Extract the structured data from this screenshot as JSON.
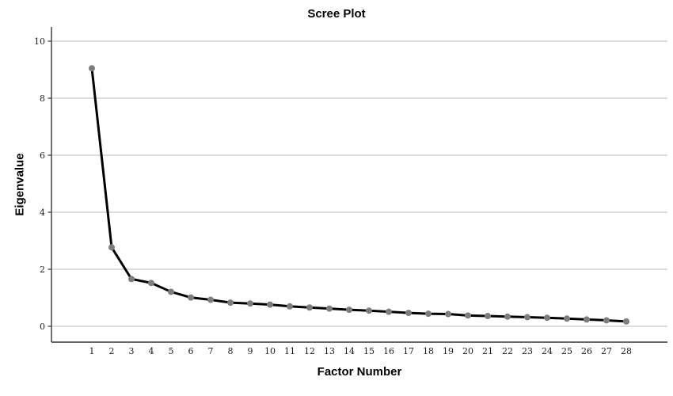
{
  "chart_data": {
    "type": "line",
    "title": "Scree Plot",
    "xlabel": "Factor Number",
    "ylabel": "Eigenvalue",
    "categories": [
      1,
      2,
      3,
      4,
      5,
      6,
      7,
      8,
      9,
      10,
      11,
      12,
      13,
      14,
      15,
      16,
      17,
      18,
      19,
      20,
      21,
      22,
      23,
      24,
      25,
      26,
      27,
      28
    ],
    "values": [
      9.05,
      2.77,
      1.66,
      1.52,
      1.21,
      1.01,
      0.93,
      0.83,
      0.8,
      0.76,
      0.7,
      0.66,
      0.62,
      0.58,
      0.55,
      0.51,
      0.47,
      0.44,
      0.43,
      0.38,
      0.36,
      0.34,
      0.32,
      0.3,
      0.27,
      0.24,
      0.21,
      0.17
    ],
    "y_ticks": [
      0,
      2,
      4,
      6,
      8,
      10
    ],
    "ylim": [
      0,
      10.5
    ],
    "grid": "horizontal-only",
    "legend": "none",
    "colors": {
      "line": "#000000",
      "marker": "#7d7d7d",
      "grid": "#c6c6c6",
      "axis": "#333333",
      "tick_label": "#1a1a1a",
      "background": "#ffffff"
    }
  }
}
